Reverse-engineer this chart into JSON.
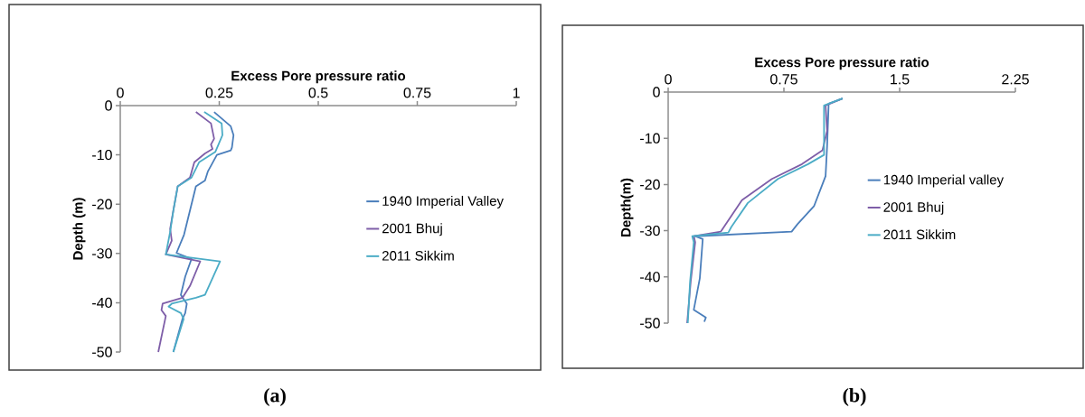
{
  "chart_data": [
    {
      "type": "line",
      "xlabel": "Excess Pore pressure ratio",
      "ylabel": "Depth (m)",
      "xlim": [
        0,
        1
      ],
      "ylim": [
        -50,
        0
      ],
      "xticks": [
        0,
        0.25,
        0.5,
        0.75,
        1
      ],
      "yticks": [
        0,
        -10,
        -20,
        -30,
        -40,
        -50
      ],
      "legend": "right",
      "annotations": [
        "(a)"
      ],
      "series": [
        {
          "name": "1940 Imperial Valley",
          "color": "#4a7ebb",
          "x": [
            0.237,
            0.279,
            0.286,
            0.282,
            0.279,
            0.244,
            0.221,
            0.214,
            0.191,
            0.176,
            0.161,
            0.142,
            0.18,
            0.164,
            0.153,
            0.168,
            0.164,
            0.157,
            0.134
          ],
          "values": [
            -1.3,
            -4.2,
            -6.0,
            -8.5,
            -9.1,
            -10,
            -13.4,
            -15.2,
            -16.4,
            -21.3,
            -26.2,
            -29.9,
            -31.1,
            -34.7,
            -38.4,
            -40.2,
            -42.1,
            -43.3,
            -50
          ]
        },
        {
          "name": "2001 Bhuj",
          "color": "#7e5ea8",
          "x": [
            0.191,
            0.229,
            0.237,
            0.229,
            0.233,
            0.214,
            0.187,
            0.176,
            0.145,
            0.134,
            0.126,
            0.13,
            0.115,
            0.202,
            0.176,
            0.157,
            0.107,
            0.104,
            0.115,
            0.096
          ],
          "values": [
            -1.3,
            -3.6,
            -6.7,
            -7.9,
            -8.8,
            -9.7,
            -11.5,
            -14.6,
            -16.4,
            -21.3,
            -25,
            -27.4,
            -30.2,
            -31.6,
            -36.6,
            -39,
            -40.2,
            -41.5,
            -42.7,
            -50
          ]
        },
        {
          "name": "2011 Sikkim",
          "color": "#4bacc6",
          "x": [
            0.212,
            0.256,
            0.258,
            0.248,
            0.24,
            0.199,
            0.18,
            0.145,
            0.134,
            0.126,
            0.115,
            0.252,
            0.214,
            0.191,
            0.13,
            0.122,
            0.153,
            0.16,
            0.134
          ],
          "values": [
            -1.3,
            -3.6,
            -6.0,
            -7.9,
            -9.4,
            -11.5,
            -14.6,
            -16.4,
            -21.3,
            -25.6,
            -30.2,
            -31.6,
            -38.4,
            -39,
            -40.2,
            -40.8,
            -42.1,
            -43.3,
            -50
          ]
        }
      ]
    },
    {
      "type": "line",
      "xlabel": "Excess Pore pressure ratio",
      "ylabel": "Depth(m)",
      "xlim": [
        0,
        2.25
      ],
      "ylim": [
        -50,
        0
      ],
      "xticks": [
        0,
        0.75,
        1.5,
        2.25
      ],
      "yticks": [
        0,
        -10,
        -20,
        -30,
        -40,
        -50
      ],
      "legend": "right",
      "annotations": [
        "(b)"
      ],
      "series": [
        {
          "name": "1940 Imperial valley",
          "color": "#4a7ebb",
          "x": [
            1.13,
            1.04,
            1.03,
            1.02,
            0.945,
            0.838,
            0.8,
            0.175,
            0.224,
            0.205,
            0.166,
            0.244,
            0.234
          ],
          "values": [
            -1.4,
            -2.5,
            -11.7,
            -18.2,
            -24.7,
            -28.6,
            -30.2,
            -31.2,
            -31.8,
            -40.3,
            -47.1,
            -48.8,
            -49.7
          ]
        },
        {
          "name": "2001 Bhuj",
          "color": "#7e5ea8",
          "x": [
            1.13,
            1.02,
            1.03,
            1.0,
            0.867,
            0.672,
            0.478,
            0.361,
            0.341,
            0.166,
            0.175,
            0.146,
            0.123
          ],
          "values": [
            -1.4,
            -2.9,
            -8.4,
            -12.6,
            -15.6,
            -18.8,
            -23.4,
            -29.2,
            -30.2,
            -31.2,
            -32.5,
            -41,
            -50
          ]
        },
        {
          "name": "2011 Sikkim",
          "color": "#4bacc6",
          "x": [
            1.13,
            1.01,
            1.01,
            0.906,
            0.711,
            0.516,
            0.409,
            0.39,
            0.156,
            0.166,
            0.142,
            0.127
          ],
          "values": [
            -1.4,
            -2.9,
            -13.6,
            -15.6,
            -18.8,
            -24,
            -29.2,
            -30.4,
            -31.2,
            -32.5,
            -41,
            -50
          ]
        }
      ]
    }
  ]
}
